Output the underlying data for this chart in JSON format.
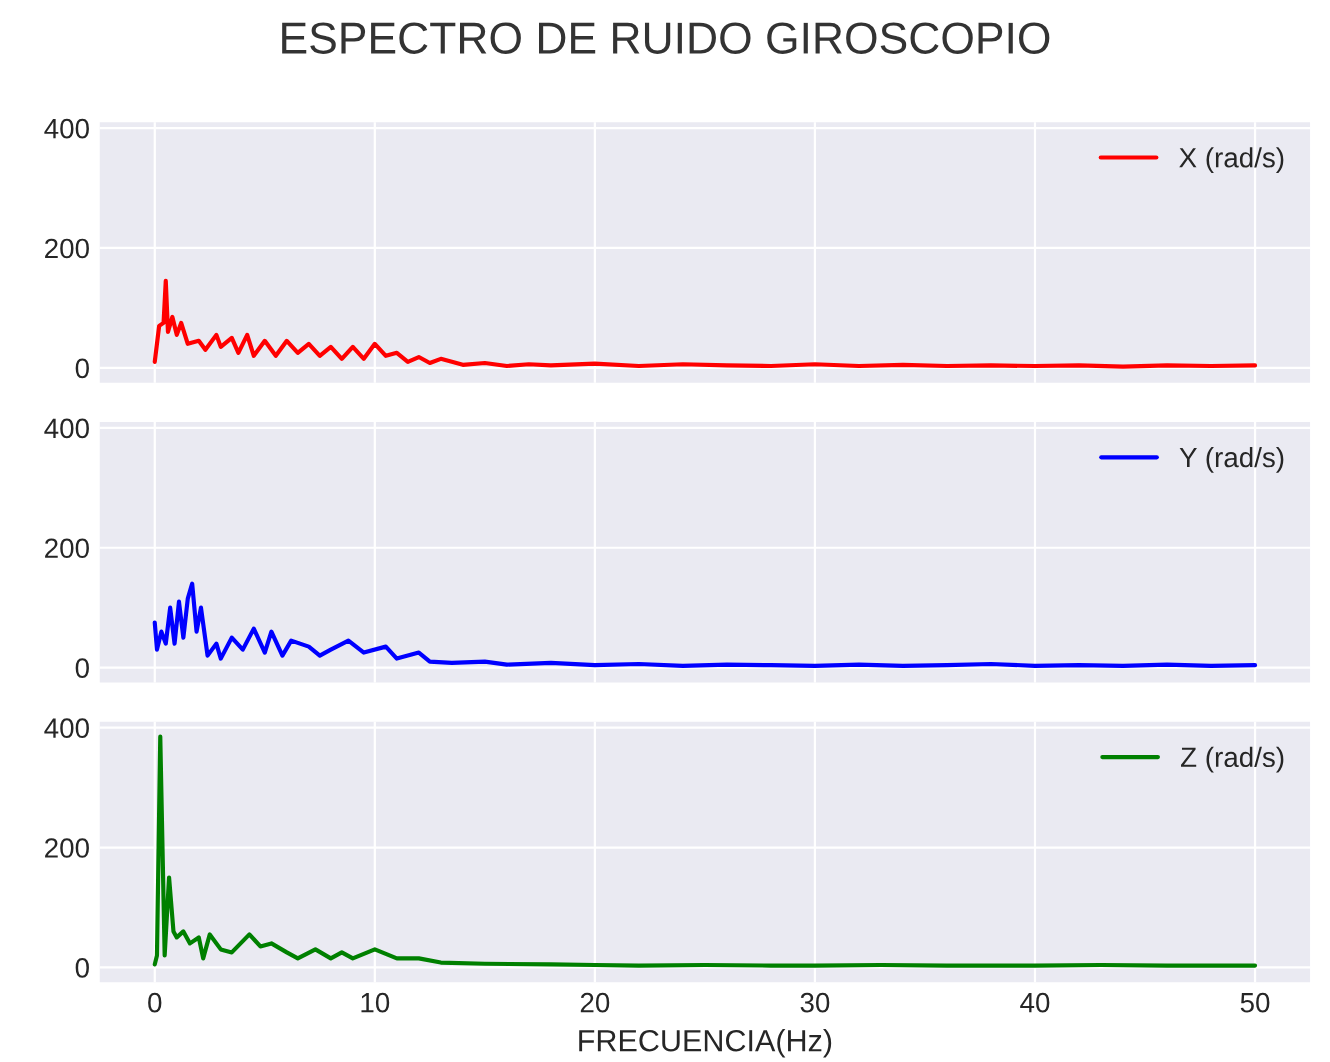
{
  "chart_data": [
    {
      "type": "line",
      "title": "ESPECTRO DE RUIDO GIROSCOPIO",
      "xlim": [
        -2.5,
        52.5
      ],
      "xticks": [
        0,
        10,
        20,
        30,
        40,
        50
      ],
      "ylim": [
        -25,
        410
      ],
      "yticks": [
        0,
        200,
        400
      ],
      "grid": true,
      "legend": "top right",
      "tick_labels": "y",
      "series": [
        {
          "name": "X (rad/s)",
          "color": "#ff0000",
          "x": [
            0,
            0.2,
            0.4,
            0.5,
            0.6,
            0.8,
            1.0,
            1.2,
            1.5,
            2,
            2.3,
            2.8,
            3,
            3.5,
            3.8,
            4.2,
            4.5,
            5,
            5.5,
            6,
            6.5,
            7,
            7.5,
            8,
            8.5,
            9,
            9.5,
            10,
            10.5,
            11,
            11.5,
            12,
            12.5,
            13,
            14,
            15,
            16,
            17,
            18,
            20,
            22,
            24,
            26,
            28,
            30,
            32,
            34,
            36,
            38,
            40,
            42,
            44,
            46,
            48,
            50
          ],
          "values": [
            10,
            70,
            75,
            145,
            60,
            85,
            55,
            75,
            40,
            45,
            30,
            55,
            35,
            50,
            25,
            55,
            20,
            45,
            20,
            45,
            25,
            40,
            20,
            35,
            15,
            35,
            15,
            40,
            20,
            25,
            10,
            18,
            8,
            15,
            5,
            8,
            3,
            6,
            4,
            7,
            3,
            6,
            4,
            3,
            6,
            3,
            5,
            3,
            4,
            3,
            4,
            2,
            4,
            3,
            4
          ]
        }
      ]
    },
    {
      "type": "line",
      "xlim": [
        -2.5,
        52.5
      ],
      "xticks": [
        0,
        10,
        20,
        30,
        40,
        50
      ],
      "ylim": [
        -25,
        410
      ],
      "yticks": [
        0,
        200,
        400
      ],
      "grid": true,
      "legend": "top right",
      "tick_labels": "y",
      "series": [
        {
          "name": "Y (rad/s)",
          "color": "#0000ff",
          "x": [
            0,
            0.1,
            0.3,
            0.5,
            0.7,
            0.9,
            1.1,
            1.3,
            1.5,
            1.7,
            1.9,
            2.1,
            2.4,
            2.8,
            3,
            3.5,
            4,
            4.5,
            5,
            5.3,
            5.8,
            6.2,
            7,
            7.5,
            8,
            8.8,
            9.5,
            10.5,
            11,
            12,
            12.5,
            13.5,
            15,
            16,
            18,
            20,
            22,
            24,
            26,
            28,
            30,
            32,
            34,
            36,
            38,
            40,
            42,
            44,
            46,
            48,
            50
          ],
          "values": [
            75,
            30,
            60,
            40,
            100,
            40,
            110,
            50,
            115,
            140,
            60,
            100,
            20,
            40,
            15,
            50,
            30,
            65,
            25,
            60,
            20,
            45,
            35,
            20,
            30,
            45,
            25,
            35,
            15,
            25,
            10,
            8,
            10,
            5,
            8,
            4,
            6,
            3,
            5,
            4,
            3,
            5,
            3,
            4,
            6,
            3,
            4,
            3,
            5,
            3,
            4
          ]
        }
      ]
    },
    {
      "type": "line",
      "xlim": [
        -2.5,
        52.5
      ],
      "ylim": [
        -25,
        410
      ],
      "yticks": [
        0,
        200,
        400
      ],
      "xticks": [
        0,
        10,
        20,
        30,
        40,
        50
      ],
      "xlabel": "FRECUENCIA(Hz)",
      "grid": true,
      "legend": "top right",
      "series": [
        {
          "name": "Z (rad/s)",
          "color": "#008000",
          "x": [
            0,
            0.1,
            0.25,
            0.45,
            0.65,
            0.85,
            1,
            1.3,
            1.6,
            2,
            2.2,
            2.5,
            3,
            3.5,
            4.3,
            4.8,
            5.3,
            6,
            6.5,
            7.3,
            8,
            8.5,
            9,
            10,
            11,
            12,
            13,
            15,
            18,
            20,
            22,
            25,
            28,
            30,
            33,
            36,
            40,
            43,
            46,
            50
          ],
          "values": [
            5,
            20,
            385,
            20,
            150,
            60,
            50,
            60,
            40,
            50,
            15,
            55,
            30,
            25,
            55,
            35,
            40,
            25,
            15,
            30,
            15,
            25,
            15,
            30,
            15,
            15,
            8,
            6,
            5,
            4,
            3,
            4,
            3,
            3,
            4,
            3,
            3,
            4,
            3,
            3
          ]
        }
      ]
    }
  ]
}
